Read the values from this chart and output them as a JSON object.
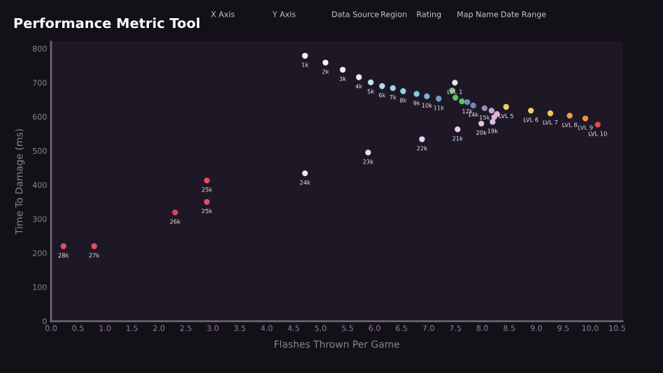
{
  "chart_data": {
    "type": "scatter",
    "title": "Performance Metric Tool",
    "xlabel": "Flashes Thrown Per Game",
    "ylabel": "Time To Damage (ms)",
    "x": [
      4.71,
      5.09,
      5.41,
      5.71,
      5.93,
      6.14,
      6.34,
      6.53,
      6.78,
      6.97,
      7.19,
      7.72,
      7.83,
      8.04,
      8.17,
      8.27,
      8.22,
      8.19,
      7.98,
      7.54,
      6.88,
      5.88,
      4.71,
      2.89,
      2.89,
      2.3,
      0.8,
      0.23,
      7.49,
      7.44,
      7.5,
      7.62,
      8.44,
      8.9,
      9.26,
      9.62,
      9.91,
      10.14
    ],
    "values": [
      779,
      759,
      738,
      716,
      701,
      690,
      684,
      675,
      667,
      660,
      653,
      643,
      633,
      625,
      618,
      608,
      599,
      585,
      580,
      563,
      534,
      495,
      434,
      413,
      350,
      319,
      220,
      220,
      700,
      677,
      656,
      645,
      629,
      618,
      610,
      603,
      595,
      577
    ],
    "colors": [
      "#ffffff",
      "#f4f4f8",
      "#eeeef4",
      "#e8eaf2",
      "#bfe4f0",
      "#a8dcee",
      "#9ad6ec",
      "#8fd2ea",
      "#88c8e4",
      "#7ab4d4",
      "#6fa0c4",
      "#6a90b8",
      "#6a88b0",
      "#9a8cb8",
      "#c8a8d0",
      "#d8b0d8",
      "#dcb4dc",
      "#e0b8e0",
      "#e4c0e4",
      "#ecc8ec",
      "#f0d0f0",
      "#f4d8f4",
      "#f8e0f0",
      "#e84a5a",
      "#e05060",
      "#d84858",
      "#e05060",
      "#e05060",
      "#e8e8e8",
      "#6ac86a",
      "#5ac060",
      "#60c060",
      "#f0d060",
      "#f0d060",
      "#f0c850",
      "#f0a040",
      "#f09040",
      "#e84848"
    ],
    "xlim": [
      0,
      10.6
    ],
    "ylim": [
      0,
      820
    ],
    "xticks": [
      {
        "value": 0,
        "label": "0.0"
      },
      0.5,
      {
        "value": 1,
        "label": "1.0"
      },
      1.5,
      {
        "value": 2,
        "label": "2.0"
      },
      2.5,
      {
        "value": 3,
        "label": "3.0"
      },
      3.5,
      {
        "value": 4,
        "label": "4.0"
      },
      4.5,
      {
        "value": 5,
        "label": "5.0"
      },
      5.5,
      {
        "value": 6,
        "label": "6.0"
      },
      6.5,
      {
        "value": 7,
        "label": "7.0"
      },
      7.5,
      {
        "value": 8,
        "label": "8.0"
      },
      8.5,
      {
        "value": 9,
        "label": "9.0"
      },
      9.5,
      {
        "value": 10,
        "label": "10.0"
      },
      10.5
    ],
    "yticks": [
      0,
      100,
      200,
      300,
      400,
      500,
      600,
      700,
      800
    ],
    "grid": false,
    "legend": false,
    "marker": "circle",
    "annotations": [
      "X Axis",
      "Y Axis",
      "Data Source",
      "Region",
      "Rating",
      "Map Name",
      "Date Range",
      {
        "text": "1k",
        "x": 4.71,
        "y": 779
      },
      {
        "text": "2k",
        "x": 5.09,
        "y": 759
      },
      {
        "text": "3k",
        "x": 5.41,
        "y": 738
      },
      {
        "text": "4k",
        "x": 5.71,
        "y": 716
      },
      {
        "text": "5k",
        "x": 5.93,
        "y": 701
      },
      {
        "text": "6k",
        "x": 6.14,
        "y": 690
      },
      {
        "text": "7k",
        "x": 6.34,
        "y": 684
      },
      {
        "text": "8k",
        "x": 6.53,
        "y": 675
      },
      {
        "text": "9k",
        "x": 6.78,
        "y": 667
      },
      {
        "text": "10k",
        "x": 6.97,
        "y": 660
      },
      {
        "text": "11k",
        "x": 7.19,
        "y": 653
      },
      {
        "text": "12k",
        "x": 7.72,
        "y": 643
      },
      {
        "text": "14k",
        "x": 7.83,
        "y": 633
      },
      {
        "text": "15k",
        "x": 8.04,
        "y": 625
      },
      {
        "text": "19k",
        "x": 8.19,
        "y": 585
      },
      {
        "text": "20k",
        "x": 7.98,
        "y": 580
      },
      {
        "text": "21k",
        "x": 7.54,
        "y": 563
      },
      {
        "text": "22k",
        "x": 6.88,
        "y": 534
      },
      {
        "text": "23k",
        "x": 5.88,
        "y": 495
      },
      {
        "text": "24k",
        "x": 4.71,
        "y": 434
      },
      {
        "text": "25k",
        "x": 2.89,
        "y": 413
      },
      {
        "text": "25k",
        "x": 2.89,
        "y": 350
      },
      {
        "text": "26k",
        "x": 2.3,
        "y": 319
      },
      {
        "text": "27k",
        "x": 0.8,
        "y": 220
      },
      {
        "text": "28k",
        "x": 0.23,
        "y": 220
      },
      {
        "text": "LVL 1",
        "x": 7.49,
        "y": 700
      },
      {
        "text": "LVL 5",
        "x": 8.44,
        "y": 629
      },
      {
        "text": "LVL 6",
        "x": 8.9,
        "y": 618
      },
      {
        "text": "LVL 7",
        "x": 9.26,
        "y": 610
      },
      {
        "text": "LVL 8",
        "x": 9.62,
        "y": 603
      },
      {
        "text": "LVL 9",
        "x": 9.91,
        "y": 595
      },
      {
        "text": "LVL 10",
        "x": 10.14,
        "y": 577
      }
    ]
  }
}
